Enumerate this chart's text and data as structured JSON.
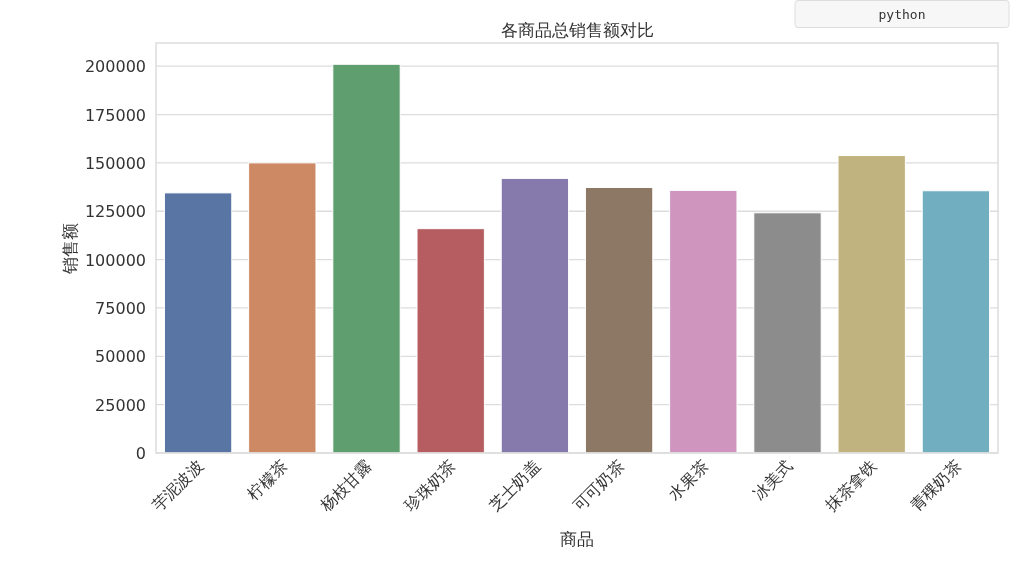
{
  "chart_data": {
    "type": "bar",
    "title": "各商品总销售额对比",
    "xlabel": "商品",
    "ylabel": "销售额",
    "categories": [
      "芋泥波波",
      "柠檬茶",
      "杨枝甘露",
      "珍珠奶茶",
      "芝士奶盖",
      "可可奶茶",
      "水果茶",
      "冰美式",
      "抹茶拿铁",
      "青稞奶茶"
    ],
    "values": [
      134500,
      150000,
      201000,
      116000,
      142000,
      137300,
      135800,
      124200,
      153800,
      135600
    ],
    "colors": [
      "#5875a4",
      "#cc8963",
      "#5f9e6e",
      "#b55d60",
      "#857aab",
      "#8d7866",
      "#d095bf",
      "#8c8c8c",
      "#c1b37f",
      "#71aec0"
    ],
    "ylim": [
      0,
      212000
    ],
    "yticks": [
      0,
      25000,
      50000,
      75000,
      100000,
      125000,
      150000,
      175000,
      200000
    ],
    "grid": "y",
    "annotations": [
      "python"
    ]
  }
}
